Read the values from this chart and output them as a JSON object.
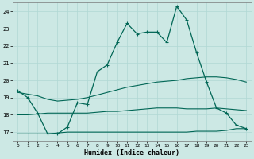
{
  "xlabel": "Humidex (Indice chaleur)",
  "background_color": "#cce8e4",
  "grid_color": "#b0d8d4",
  "line_color": "#006655",
  "xlim": [
    -0.5,
    23.5
  ],
  "ylim": [
    16.5,
    24.5
  ],
  "xticks": [
    0,
    1,
    2,
    3,
    4,
    5,
    6,
    7,
    8,
    9,
    10,
    11,
    12,
    13,
    14,
    15,
    16,
    17,
    18,
    19,
    20,
    21,
    22,
    23
  ],
  "yticks": [
    17,
    18,
    19,
    20,
    21,
    22,
    23,
    24
  ],
  "line1_x": [
    0,
    1,
    2,
    3,
    4,
    5,
    6,
    7,
    8,
    9,
    10,
    11,
    12,
    13,
    14,
    15,
    16,
    17,
    18,
    19,
    20,
    21,
    22,
    23
  ],
  "line1_y": [
    19.4,
    19.0,
    18.1,
    16.9,
    16.9,
    17.3,
    18.7,
    18.6,
    20.5,
    20.9,
    22.2,
    23.3,
    22.7,
    22.8,
    22.8,
    22.2,
    24.3,
    23.5,
    21.6,
    19.9,
    18.4,
    18.1,
    17.4,
    17.2
  ],
  "line2_x": [
    0,
    1,
    2,
    3,
    4,
    5,
    6,
    7,
    8,
    9,
    10,
    11,
    12,
    13,
    14,
    15,
    16,
    17,
    18,
    19,
    20,
    21,
    22,
    23
  ],
  "line2_y": [
    19.3,
    19.2,
    19.1,
    18.9,
    18.8,
    18.85,
    18.9,
    19.0,
    19.15,
    19.3,
    19.45,
    19.6,
    19.7,
    19.8,
    19.9,
    19.95,
    20.0,
    20.1,
    20.15,
    20.2,
    20.2,
    20.15,
    20.05,
    19.9
  ],
  "line3_x": [
    0,
    1,
    2,
    3,
    4,
    5,
    6,
    7,
    8,
    9,
    10,
    11,
    12,
    13,
    14,
    15,
    16,
    17,
    18,
    19,
    20,
    21,
    22,
    23
  ],
  "line3_y": [
    18.0,
    18.0,
    18.05,
    18.1,
    18.1,
    18.1,
    18.1,
    18.1,
    18.15,
    18.2,
    18.2,
    18.25,
    18.3,
    18.35,
    18.4,
    18.4,
    18.4,
    18.35,
    18.35,
    18.35,
    18.4,
    18.35,
    18.3,
    18.25
  ],
  "line4_x": [
    0,
    1,
    2,
    3,
    4,
    5,
    6,
    7,
    8,
    9,
    10,
    11,
    12,
    13,
    14,
    15,
    16,
    17,
    18,
    19,
    20,
    21,
    22,
    23
  ],
  "line4_y": [
    16.9,
    16.9,
    16.9,
    16.9,
    16.95,
    17.0,
    17.0,
    17.0,
    17.0,
    17.0,
    17.0,
    17.0,
    17.0,
    17.0,
    17.0,
    17.0,
    17.0,
    17.0,
    17.05,
    17.05,
    17.05,
    17.1,
    17.2,
    17.2
  ]
}
